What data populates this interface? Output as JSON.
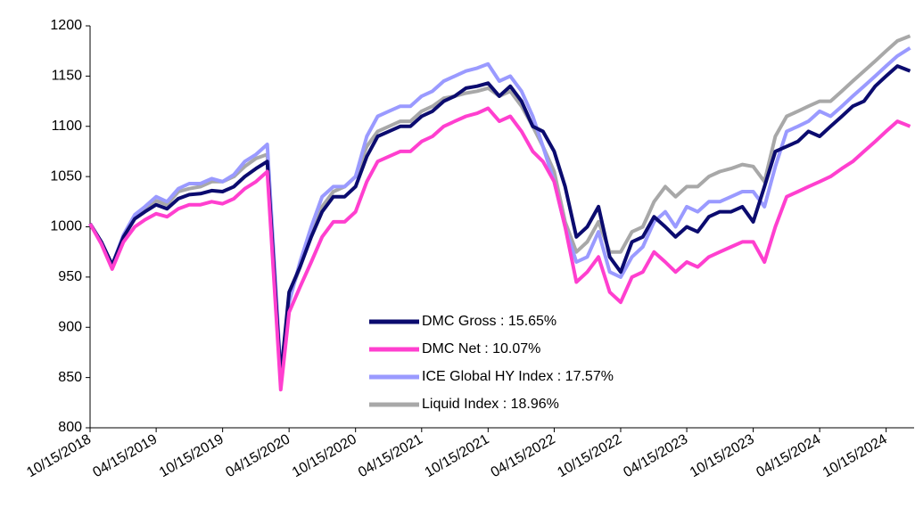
{
  "chart_data": {
    "type": "line",
    "x": [
      "10/15/2018",
      "11/15/2018",
      "12/15/2018",
      "01/15/2019",
      "02/15/2019",
      "03/15/2019",
      "04/15/2019",
      "05/15/2019",
      "06/15/2019",
      "07/15/2019",
      "08/15/2019",
      "09/15/2019",
      "10/15/2019",
      "11/15/2019",
      "12/15/2019",
      "01/15/2020",
      "02/15/2020",
      "03/23/2020",
      "04/15/2020",
      "05/15/2020",
      "06/15/2020",
      "07/15/2020",
      "08/15/2020",
      "09/15/2020",
      "10/15/2020",
      "11/15/2020",
      "12/15/2020",
      "01/15/2021",
      "02/15/2021",
      "03/15/2021",
      "04/15/2021",
      "05/15/2021",
      "06/15/2021",
      "07/15/2021",
      "08/15/2021",
      "09/15/2021",
      "10/15/2021",
      "11/15/2021",
      "12/15/2021",
      "01/15/2022",
      "02/15/2022",
      "03/15/2022",
      "04/15/2022",
      "05/15/2022",
      "06/15/2022",
      "07/15/2022",
      "08/15/2022",
      "09/15/2022",
      "10/15/2022",
      "11/15/2022",
      "12/15/2022",
      "01/15/2023",
      "02/15/2023",
      "03/15/2023",
      "04/15/2023",
      "05/15/2023",
      "06/15/2023",
      "07/15/2023",
      "08/15/2023",
      "09/15/2023",
      "10/15/2023",
      "11/15/2023",
      "12/15/2023",
      "01/15/2024",
      "02/15/2024",
      "03/15/2024",
      "04/15/2024",
      "05/15/2024",
      "06/15/2024",
      "07/15/2024",
      "08/15/2024",
      "09/15/2024",
      "10/15/2024",
      "11/15/2024",
      "12/20/2024"
    ],
    "series": [
      {
        "name": "DMC Gross : 15.65%",
        "color": "#0b0b6f",
        "values": [
          1003,
          985,
          962,
          990,
          1008,
          1015,
          1022,
          1018,
          1028,
          1032,
          1033,
          1036,
          1035,
          1040,
          1050,
          1058,
          1065,
          850,
          935,
          960,
          990,
          1015,
          1030,
          1030,
          1040,
          1070,
          1090,
          1095,
          1100,
          1100,
          1110,
          1115,
          1125,
          1130,
          1138,
          1140,
          1143,
          1130,
          1140,
          1125,
          1100,
          1095,
          1075,
          1040,
          990,
          1000,
          1020,
          970,
          955,
          985,
          990,
          1010,
          1000,
          990,
          1000,
          995,
          1010,
          1015,
          1015,
          1020,
          1005,
          1040,
          1075,
          1080,
          1085,
          1095,
          1090,
          1100,
          1110,
          1120,
          1125,
          1140,
          1150,
          1160,
          1155
        ]
      },
      {
        "name": "DMC Net : 10.07%",
        "color": "#ff3fcf",
        "values": [
          1003,
          983,
          958,
          985,
          1000,
          1007,
          1013,
          1010,
          1018,
          1022,
          1022,
          1025,
          1023,
          1028,
          1038,
          1045,
          1055,
          838,
          915,
          940,
          965,
          990,
          1005,
          1005,
          1015,
          1045,
          1065,
          1070,
          1075,
          1075,
          1085,
          1090,
          1100,
          1105,
          1110,
          1113,
          1118,
          1105,
          1110,
          1095,
          1075,
          1065,
          1045,
          1000,
          945,
          955,
          970,
          935,
          925,
          950,
          955,
          975,
          965,
          955,
          965,
          960,
          970,
          975,
          980,
          985,
          985,
          965,
          1000,
          1030,
          1035,
          1040,
          1045,
          1050,
          1058,
          1065,
          1075,
          1085,
          1095,
          1105,
          1100
        ]
      },
      {
        "name": "ICE Global HY Index : 17.57%",
        "color": "#9a9aff",
        "values": [
          1003,
          985,
          962,
          992,
          1012,
          1020,
          1030,
          1025,
          1038,
          1043,
          1043,
          1048,
          1045,
          1052,
          1065,
          1072,
          1082,
          855,
          925,
          965,
          1000,
          1030,
          1040,
          1040,
          1050,
          1090,
          1110,
          1115,
          1120,
          1120,
          1130,
          1135,
          1145,
          1150,
          1155,
          1158,
          1162,
          1145,
          1150,
          1135,
          1110,
          1080,
          1045,
          1000,
          965,
          970,
          995,
          955,
          950,
          970,
          980,
          1005,
          1015,
          1000,
          1020,
          1015,
          1025,
          1025,
          1030,
          1035,
          1035,
          1020,
          1060,
          1095,
          1100,
          1105,
          1115,
          1110,
          1120,
          1130,
          1140,
          1150,
          1160,
          1170,
          1178
        ]
      },
      {
        "name": "Liquid Index : 18.96%",
        "color": "#a8a8a8",
        "values": [
          1003,
          985,
          962,
          990,
          1010,
          1018,
          1026,
          1022,
          1035,
          1038,
          1040,
          1045,
          1045,
          1050,
          1060,
          1068,
          1072,
          845,
          930,
          960,
          995,
          1020,
          1035,
          1040,
          1050,
          1080,
          1095,
          1100,
          1105,
          1105,
          1115,
          1120,
          1128,
          1130,
          1133,
          1135,
          1138,
          1130,
          1135,
          1120,
          1100,
          1080,
          1055,
          1005,
          975,
          985,
          1005,
          975,
          975,
          995,
          1000,
          1025,
          1040,
          1030,
          1040,
          1040,
          1050,
          1055,
          1058,
          1062,
          1060,
          1045,
          1090,
          1110,
          1115,
          1120,
          1125,
          1125,
          1135,
          1145,
          1155,
          1165,
          1175,
          1185,
          1190
        ]
      }
    ],
    "xlim": [
      "10/15/2018",
      "12/31/2024"
    ],
    "xticks": [
      "10/15/2018",
      "04/15/2019",
      "10/15/2019",
      "04/15/2020",
      "10/15/2020",
      "04/15/2021",
      "10/15/2021",
      "04/15/2022",
      "10/15/2022",
      "04/15/2023",
      "10/15/2023",
      "04/15/2024",
      "10/15/2024"
    ],
    "ylim": [
      800,
      1200
    ],
    "yticks": [
      800,
      850,
      900,
      950,
      1000,
      1050,
      1100,
      1150,
      1200
    ],
    "grid": false
  }
}
